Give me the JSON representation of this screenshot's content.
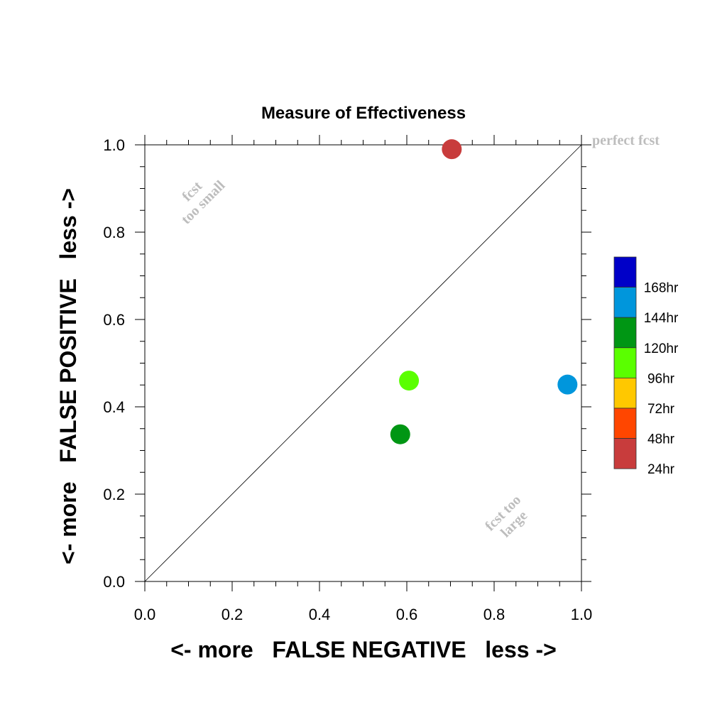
{
  "chart_data": {
    "type": "scatter",
    "title": "Measure of Effectiveness",
    "xlabel": "<- more   FALSE NEGATIVE   less ->",
    "ylabel": "<- more   FALSE POSITIVE   less ->",
    "xlim": [
      0.0,
      1.0
    ],
    "ylim": [
      0.0,
      1.0
    ],
    "x_ticks": [
      "0.0",
      "0.2",
      "0.4",
      "0.6",
      "0.8",
      "1.0"
    ],
    "y_ticks": [
      "0.0",
      "0.2",
      "0.4",
      "0.6",
      "0.8",
      "1.0"
    ],
    "grid": false,
    "diagonal_reference_line": true,
    "annotations": {
      "top_right": "perfect fcst",
      "upper_left": [
        "fcst",
        "too small"
      ],
      "lower_right": [
        "fcst too",
        "large"
      ]
    },
    "legend": {
      "placement": "right",
      "entries": [
        {
          "label": "168hr",
          "color": "#0000c8"
        },
        {
          "label": "144hr",
          "color": "#0096dc"
        },
        {
          "label": "120hr",
          "color": "#009614"
        },
        {
          "label": "96hr",
          "color": "#5aff00"
        },
        {
          "label": "72hr",
          "color": "#ffc800"
        },
        {
          "label": "48hr",
          "color": "#ff4600"
        },
        {
          "label": "24hr",
          "color": "#c83c3c"
        }
      ]
    },
    "points": [
      {
        "x": 0.703,
        "y": 0.99,
        "color": "#c83c3c"
      },
      {
        "x": 0.605,
        "y": 0.46,
        "color": "#5aff00"
      },
      {
        "x": 0.585,
        "y": 0.337,
        "color": "#009614"
      },
      {
        "x": 0.968,
        "y": 0.451,
        "color": "#0096dc"
      }
    ]
  }
}
